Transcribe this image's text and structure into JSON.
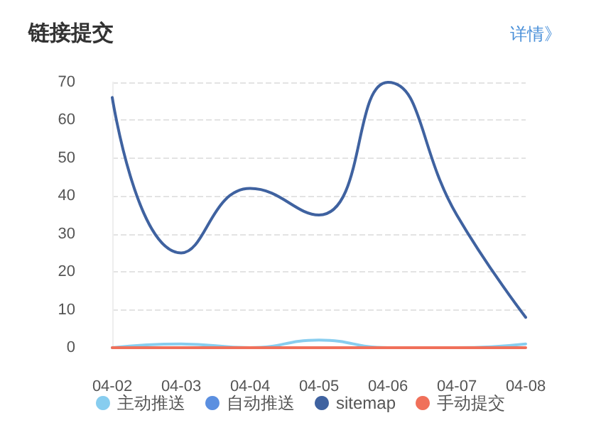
{
  "chart_data": {
    "type": "line",
    "title": "链接提交",
    "annotations": [
      "详情》"
    ],
    "categories": [
      "04-02",
      "04-03",
      "04-04",
      "04-05",
      "04-06",
      "04-07",
      "04-08"
    ],
    "series": [
      {
        "name": "主动推送",
        "color": "#87cdef",
        "values": [
          0,
          1,
          0,
          2,
          0,
          0,
          1
        ]
      },
      {
        "name": "自动推送",
        "color": "#5b8fe0",
        "values": [
          null,
          null,
          null,
          null,
          null,
          null,
          null
        ]
      },
      {
        "name": "sitemap",
        "color": "#3f62a0",
        "values": [
          66,
          25,
          42,
          35,
          70,
          35,
          8
        ]
      },
      {
        "name": "手动提交",
        "color": "#f0705a",
        "values": [
          0,
          0,
          0,
          0,
          0,
          0,
          0
        ]
      }
    ],
    "ylim": [
      0,
      70
    ],
    "yticks": [
      0,
      10,
      20,
      30,
      40,
      50,
      60,
      70
    ],
    "grid": "y",
    "legend": "bottom",
    "marker": "none",
    "line_style": "solid"
  }
}
